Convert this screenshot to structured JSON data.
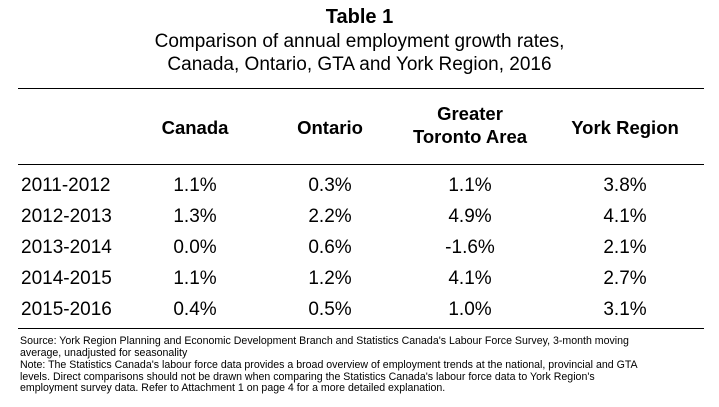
{
  "title": "Table 1",
  "subtitle_line1": "Comparison of annual employment growth rates,",
  "subtitle_line2": "Canada, Ontario, GTA and York Region, 2016",
  "headers": {
    "canada": "Canada",
    "ontario": "Ontario",
    "gta_line1": "Greater",
    "gta_line2": "Toronto Area",
    "york": "York Region"
  },
  "rows": [
    {
      "year": "2011-2012",
      "canada": "1.1%",
      "ontario": "0.3%",
      "gta": "1.1%",
      "york": "3.8%"
    },
    {
      "year": "2012-2013",
      "canada": "1.3%",
      "ontario": "2.2%",
      "gta": "4.9%",
      "york": "4.1%"
    },
    {
      "year": "2013-2014",
      "canada": "0.0%",
      "ontario": "0.6%",
      "gta": "-1.6%",
      "york": "2.1%"
    },
    {
      "year": "2014-2015",
      "canada": "1.1%",
      "ontario": "1.2%",
      "gta": "4.1%",
      "york": "2.7%"
    },
    {
      "year": "2015-2016",
      "canada": "0.4%",
      "ontario": "0.5%",
      "gta": "1.0%",
      "york": "3.1%"
    }
  ],
  "source_line1": "Source: York Region Planning and Economic Development Branch and Statistics Canada's Labour Force Survey, 3-month moving",
  "source_line2": "average, unadjusted for seasonality",
  "note_line1": "Note: The Statistics Canada's labour force data provides a broad overview of employment trends at the national, provincial and GTA",
  "note_line2": "levels. Direct comparisons should not be drawn when comparing the Statistics Canada's labour force data to York Region's",
  "note_line3": "employment survey data. Refer to Attachment 1 on page 4 for a more detailed explanation."
}
